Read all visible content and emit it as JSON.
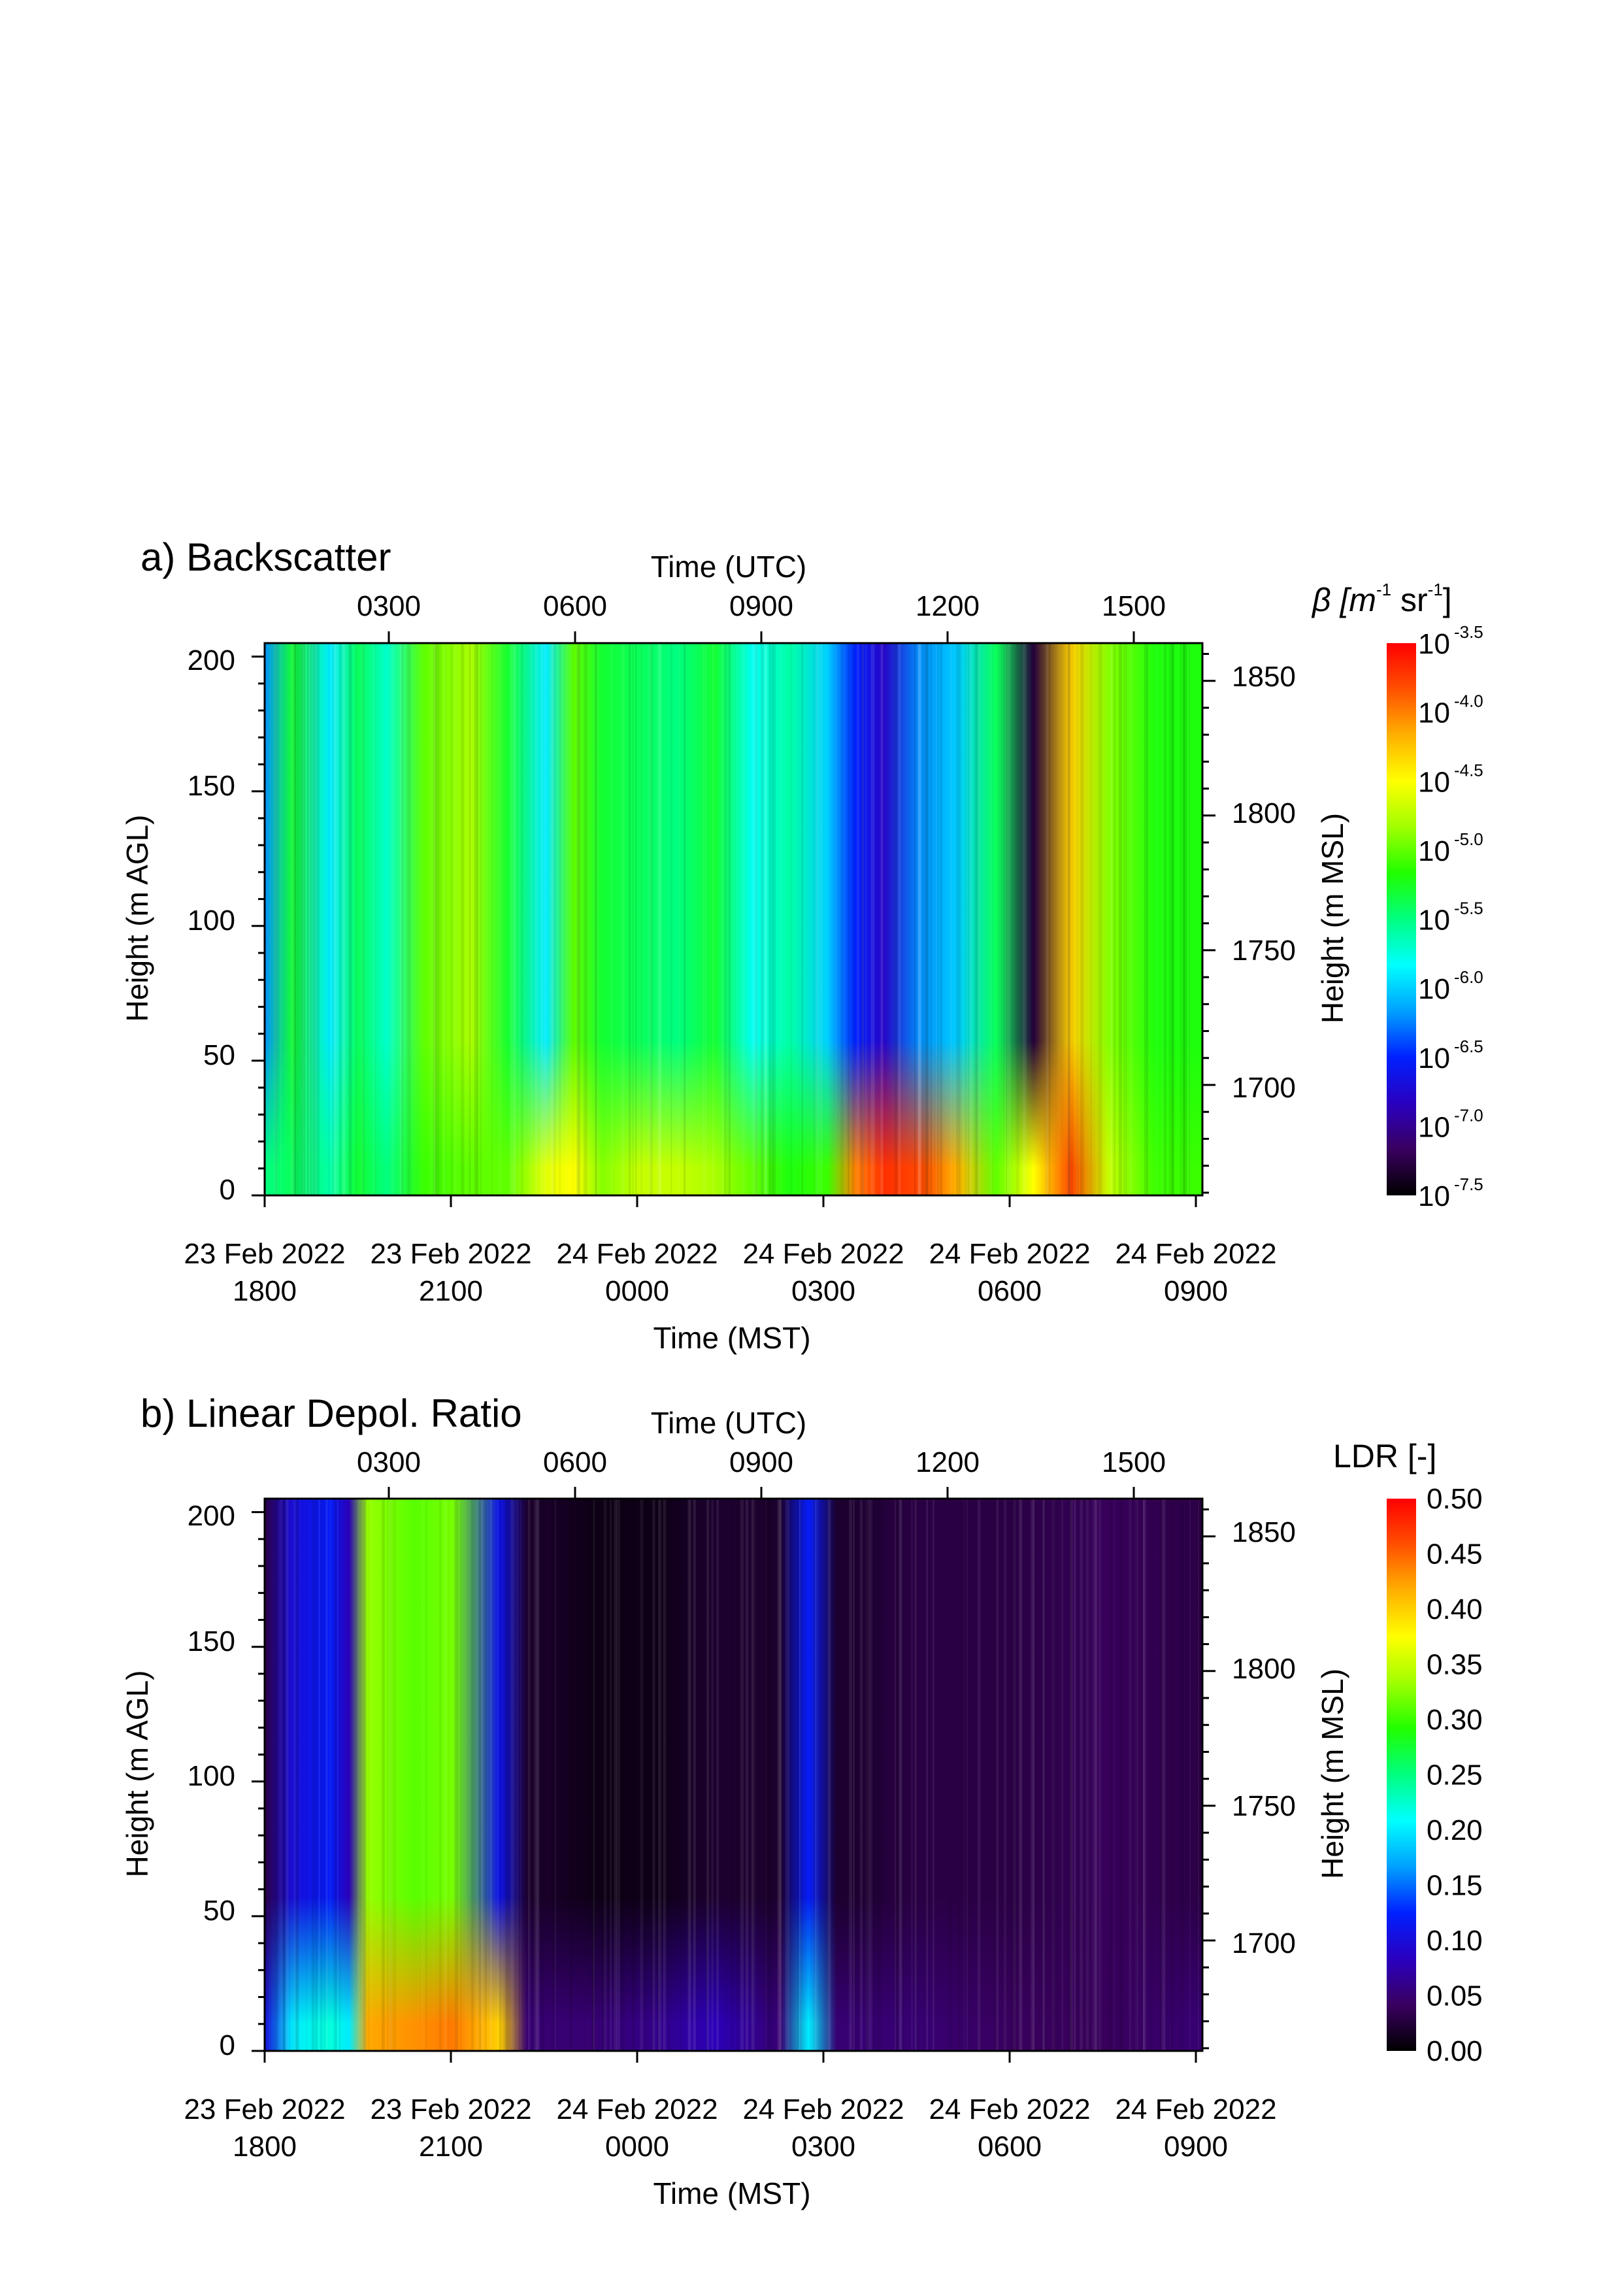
{
  "chart_data": [
    {
      "type": "heatmap",
      "panel_title": "a) Backscatter",
      "top_axis_title": "Time (UTC)",
      "top_tick_labels": [
        "0300",
        "0600",
        "0900",
        "1200",
        "1500"
      ],
      "bottom_axis_title": "Time (MST)",
      "bottom_tick_labels": [
        {
          "date": "23 Feb 2022",
          "time": "1800"
        },
        {
          "date": "23 Feb 2022",
          "time": "2100"
        },
        {
          "date": "24 Feb 2022",
          "time": "0000"
        },
        {
          "date": "24 Feb 2022",
          "time": "0300"
        },
        {
          "date": "24 Feb 2022",
          "time": "0600"
        },
        {
          "date": "24 Feb 2022",
          "time": "0900"
        }
      ],
      "left_axis_title": "Height (m AGL)",
      "left_tick_labels": [
        "0",
        "50",
        "100",
        "150",
        "200"
      ],
      "ylim_agl": [
        0,
        205
      ],
      "right_axis_title": "Height (m MSL)",
      "right_tick_labels": [
        "1700",
        "1750",
        "1800",
        "1850"
      ],
      "colorbar": {
        "title_prefix": "β [m",
        "title_exp1": "-1",
        "title_mid": " sr",
        "title_exp2": "-1",
        "title_suffix": "]",
        "scale": "log",
        "base": "10",
        "exponents": [
          "-3.5",
          "-4.0",
          "-4.5",
          "-5.0",
          "-5.5",
          "-6.0",
          "-6.5",
          "-7.0",
          "-7.5"
        ],
        "range_log10": [
          -7.5,
          -3.5
        ],
        "colormap": "rainbow (black-purple-blue-cyan-green-yellow-orange-red)"
      },
      "columns_log10_beta": [
        {
          "t": 0.0,
          "top": -6.2,
          "low": -5.5
        },
        {
          "t": 0.03,
          "top": -5.3,
          "low": -5.4
        },
        {
          "t": 0.07,
          "top": -5.9,
          "low": -5.6
        },
        {
          "t": 0.1,
          "top": -5.4,
          "low": -5.3
        },
        {
          "t": 0.13,
          "top": -5.7,
          "low": -5.5
        },
        {
          "t": 0.17,
          "top": -5.0,
          "low": -5.1
        },
        {
          "t": 0.22,
          "top": -4.8,
          "low": -5.0
        },
        {
          "t": 0.26,
          "top": -5.3,
          "low": -5.0
        },
        {
          "t": 0.3,
          "top": -5.9,
          "low": -4.6
        },
        {
          "t": 0.33,
          "top": -5.0,
          "low": -4.5
        },
        {
          "t": 0.36,
          "top": -5.3,
          "low": -4.9
        },
        {
          "t": 0.4,
          "top": -5.4,
          "low": -4.7
        },
        {
          "t": 0.44,
          "top": -5.5,
          "low": -4.7
        },
        {
          "t": 0.48,
          "top": -5.3,
          "low": -4.8
        },
        {
          "t": 0.52,
          "top": -5.8,
          "low": -5.0
        },
        {
          "t": 0.56,
          "top": -5.6,
          "low": -5.2
        },
        {
          "t": 0.6,
          "top": -6.0,
          "low": -5.1
        },
        {
          "t": 0.63,
          "top": -6.5,
          "low": -4.0
        },
        {
          "t": 0.66,
          "top": -6.8,
          "low": -3.7
        },
        {
          "t": 0.7,
          "top": -6.2,
          "low": -3.8
        },
        {
          "t": 0.74,
          "top": -6.0,
          "low": -4.2
        },
        {
          "t": 0.78,
          "top": -5.4,
          "low": -5.0
        },
        {
          "t": 0.82,
          "top": -7.3,
          "low": -4.5
        },
        {
          "t": 0.86,
          "top": -4.3,
          "low": -3.8
        },
        {
          "t": 0.9,
          "top": -4.9,
          "low": -4.7
        },
        {
          "t": 0.95,
          "top": -5.2,
          "low": -5.1
        },
        {
          "t": 1.0,
          "top": -5.2,
          "low": -5.1
        }
      ]
    },
    {
      "type": "heatmap",
      "panel_title": "b) Linear Depol. Ratio",
      "top_axis_title": "Time (UTC)",
      "top_tick_labels": [
        "0300",
        "0600",
        "0900",
        "1200",
        "1500"
      ],
      "bottom_axis_title": "Time (MST)",
      "bottom_tick_labels": [
        {
          "date": "23 Feb 2022",
          "time": "1800"
        },
        {
          "date": "23 Feb 2022",
          "time": "2100"
        },
        {
          "date": "24 Feb 2022",
          "time": "0000"
        },
        {
          "date": "24 Feb 2022",
          "time": "0300"
        },
        {
          "date": "24 Feb 2022",
          "time": "0600"
        },
        {
          "date": "24 Feb 2022",
          "time": "0900"
        }
      ],
      "left_axis_title": "Height (m AGL)",
      "left_tick_labels": [
        "0",
        "50",
        "100",
        "150",
        "200"
      ],
      "ylim_agl": [
        0,
        205
      ],
      "right_axis_title": "Height (m MSL)",
      "right_tick_labels": [
        "1700",
        "1750",
        "1800",
        "1850"
      ],
      "colorbar": {
        "title": "LDR [-]",
        "scale": "linear",
        "tick_labels": [
          "0.50",
          "0.45",
          "0.40",
          "0.35",
          "0.30",
          "0.25",
          "0.20",
          "0.15",
          "0.10",
          "0.05",
          "0.00"
        ],
        "range": [
          0.0,
          0.5
        ],
        "colormap": "rainbow (black-purple-blue-cyan-green-yellow-orange-red)"
      },
      "columns_ldr": [
        {
          "t": 0.0,
          "top": 0.03,
          "low": 0.1
        },
        {
          "t": 0.03,
          "top": 0.1,
          "low": 0.2
        },
        {
          "t": 0.07,
          "top": 0.12,
          "low": 0.22
        },
        {
          "t": 0.09,
          "top": 0.08,
          "low": 0.2
        },
        {
          "t": 0.11,
          "top": 0.33,
          "low": 0.42
        },
        {
          "t": 0.16,
          "top": 0.31,
          "low": 0.43
        },
        {
          "t": 0.2,
          "top": 0.32,
          "low": 0.44
        },
        {
          "t": 0.25,
          "top": 0.11,
          "low": 0.4
        },
        {
          "t": 0.28,
          "top": 0.02,
          "low": 0.05
        },
        {
          "t": 0.35,
          "top": 0.01,
          "low": 0.05
        },
        {
          "t": 0.42,
          "top": 0.01,
          "low": 0.06
        },
        {
          "t": 0.48,
          "top": 0.02,
          "low": 0.08
        },
        {
          "t": 0.55,
          "top": 0.02,
          "low": 0.05
        },
        {
          "t": 0.58,
          "top": 0.12,
          "low": 0.2
        },
        {
          "t": 0.61,
          "top": 0.02,
          "low": 0.05
        },
        {
          "t": 0.7,
          "top": 0.03,
          "low": 0.05
        },
        {
          "t": 0.8,
          "top": 0.03,
          "low": 0.04
        },
        {
          "t": 0.9,
          "top": 0.04,
          "low": 0.04
        },
        {
          "t": 1.0,
          "top": 0.03,
          "low": 0.05
        }
      ]
    }
  ],
  "colors": {
    "colormap_stops": [
      "#000000",
      "#3a0060",
      "#2a00c0",
      "#0020ff",
      "#00a0ff",
      "#00ffff",
      "#00ff80",
      "#20ff00",
      "#a0ff00",
      "#ffff00",
      "#ffb000",
      "#ff5000",
      "#ff0000"
    ]
  }
}
